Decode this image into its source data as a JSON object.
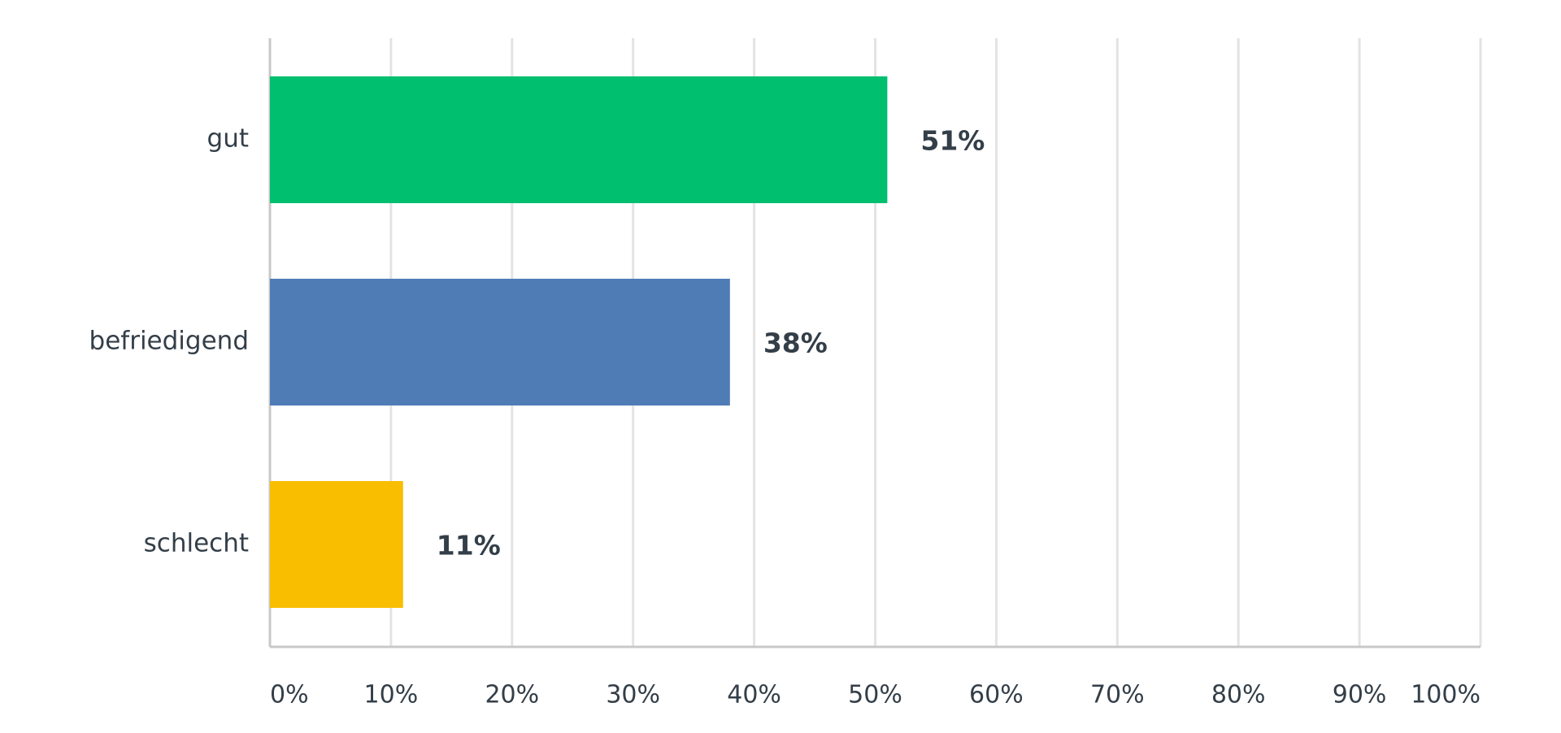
{
  "chart_data": {
    "type": "bar",
    "orientation": "horizontal",
    "categories": [
      "gut",
      "befriedigend",
      "schlecht"
    ],
    "values": [
      51,
      38,
      11
    ],
    "value_labels": [
      "51%",
      "38%",
      "11%"
    ],
    "colors": [
      "#00bf6f",
      "#507cb6",
      "#f9be00"
    ],
    "xlim": [
      0,
      100
    ],
    "xticks": [
      {
        "value": 0,
        "label": "0%"
      },
      {
        "value": 10,
        "label": "10%"
      },
      {
        "value": 20,
        "label": "20%"
      },
      {
        "value": 30,
        "label": "30%"
      },
      {
        "value": 40,
        "label": "40%"
      },
      {
        "value": 50,
        "label": "50%"
      },
      {
        "value": 60,
        "label": "60%"
      },
      {
        "value": 70,
        "label": "70%"
      },
      {
        "value": 80,
        "label": "80%"
      },
      {
        "value": 90,
        "label": "90%"
      },
      {
        "value": 100,
        "label": "100%"
      }
    ],
    "grid": true
  }
}
